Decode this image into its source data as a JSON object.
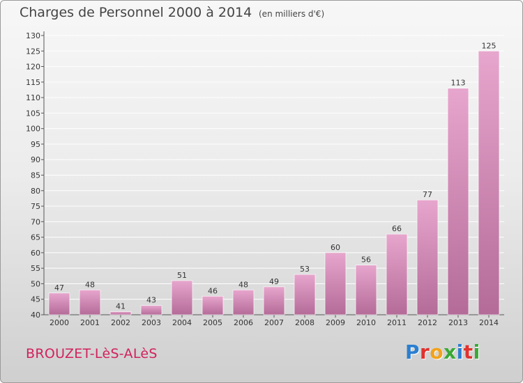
{
  "header": {
    "title": "Charges de Personnel 2000 à 2014",
    "subtitle": "(en milliers d'€)"
  },
  "footer": {
    "commune": "BROUZET-LèS-ALèS",
    "logo": "Proxiti",
    "logo_colors": [
      "#2b7fd0",
      "#e0322e",
      "#f2a21a",
      "#39a935",
      "#2b7fd0",
      "#e0322e",
      "#39a935"
    ]
  },
  "colors": {
    "bar_top": "#e7a6cd",
    "bar_bottom": "#b46b98",
    "commune": "#d1215d"
  },
  "chart_data": {
    "type": "bar",
    "title": "Charges de Personnel 2000 à 2014",
    "subtitle": "(en milliers d'€)",
    "categories": [
      "2000",
      "2001",
      "2002",
      "2003",
      "2004",
      "2005",
      "2006",
      "2007",
      "2008",
      "2009",
      "2010",
      "2011",
      "2012",
      "2013",
      "2014"
    ],
    "values": [
      47,
      48,
      41,
      43,
      51,
      46,
      48,
      49,
      53,
      60,
      56,
      66,
      77,
      113,
      125
    ],
    "ylim": [
      40,
      130
    ],
    "yticks": [
      40,
      45,
      50,
      55,
      60,
      65,
      70,
      75,
      80,
      85,
      90,
      95,
      100,
      105,
      110,
      115,
      120,
      125,
      130
    ],
    "grid": true,
    "legend": "none"
  }
}
